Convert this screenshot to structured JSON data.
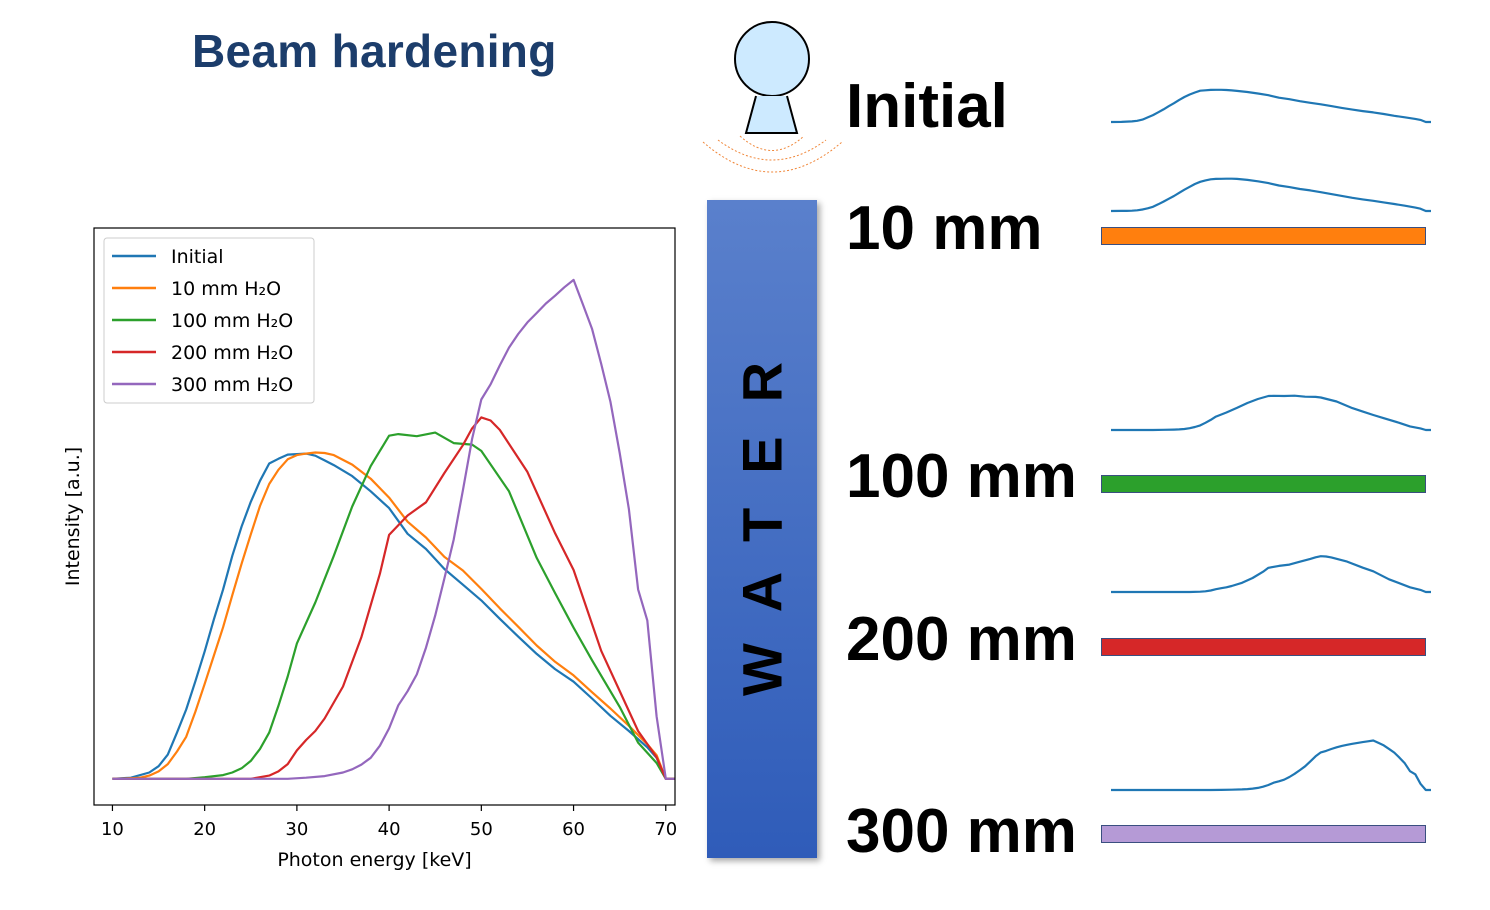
{
  "title": "Beam hardening",
  "water_label": "WATER",
  "colors": {
    "Initial": "#1f77b4",
    "10mm": "#ff7f0e",
    "100mm": "#2ca02c",
    "200mm": "#d62728",
    "300mm": "#9467bd",
    "bar_300mm_fill": "#b59ad6"
  },
  "right_panel": {
    "source_icon": "x-ray-source-icon",
    "labels": [
      "Initial",
      "10 mm",
      "100 mm",
      "200 mm",
      "300 mm"
    ]
  },
  "chart_data": {
    "type": "line",
    "xlabel": "Photon energy [keV]",
    "ylabel": "Intensity [a.u.]",
    "xlim": [
      8,
      71
    ],
    "ylim": [
      -0.05,
      1.05
    ],
    "xticks": [
      10,
      20,
      30,
      40,
      50,
      60,
      70
    ],
    "yticks_shown": false,
    "legend_position": "top-left",
    "series": [
      {
        "name": "Initial",
        "x": [
          10,
          12,
          14,
          15,
          16,
          17,
          18,
          19,
          20,
          21,
          22,
          23,
          24,
          25,
          26,
          27,
          28,
          29,
          30,
          31,
          32,
          33,
          34,
          36,
          38,
          40,
          42,
          44,
          46,
          48,
          50,
          52,
          54,
          56,
          58,
          60,
          62,
          64,
          66,
          68,
          69,
          70,
          71
        ],
        "y": [
          0,
          0.002,
          0.012,
          0.024,
          0.046,
          0.088,
          0.132,
          0.186,
          0.243,
          0.304,
          0.361,
          0.425,
          0.481,
          0.528,
          0.568,
          0.601,
          0.61,
          0.618,
          0.619,
          0.62,
          0.616,
          0.607,
          0.598,
          0.577,
          0.548,
          0.516,
          0.467,
          0.438,
          0.4,
          0.37,
          0.34,
          0.305,
          0.271,
          0.238,
          0.209,
          0.185,
          0.153,
          0.12,
          0.091,
          0.06,
          0.04,
          0,
          0
        ]
      },
      {
        "name": "10 mm H₂O",
        "x": [
          10,
          12,
          13,
          14,
          15,
          16,
          17,
          18,
          19,
          20,
          21,
          22,
          23,
          24,
          25,
          26,
          27,
          28,
          29,
          30,
          31,
          32,
          33,
          34,
          36,
          38,
          40,
          42,
          44,
          46,
          48,
          50,
          52,
          54,
          56,
          58,
          60,
          62,
          64,
          66,
          68,
          69,
          70,
          71
        ],
        "y": [
          0,
          0.001,
          0.002,
          0.006,
          0.014,
          0.028,
          0.052,
          0.08,
          0.128,
          0.181,
          0.235,
          0.289,
          0.35,
          0.41,
          0.466,
          0.52,
          0.562,
          0.589,
          0.609,
          0.617,
          0.62,
          0.622,
          0.621,
          0.617,
          0.599,
          0.572,
          0.536,
          0.49,
          0.46,
          0.423,
          0.397,
          0.362,
          0.325,
          0.29,
          0.254,
          0.223,
          0.197,
          0.165,
          0.134,
          0.101,
          0.066,
          0.045,
          0,
          0
        ]
      },
      {
        "name": "100 mm H₂O",
        "x": [
          10,
          18,
          20,
          22,
          23,
          24,
          25,
          26,
          27,
          28,
          29,
          30,
          32,
          34,
          36,
          38,
          40,
          41,
          43,
          45,
          47,
          49,
          50,
          53,
          56,
          58,
          60,
          62,
          65,
          67,
          69,
          70,
          71
        ],
        "y": [
          0,
          0,
          0.003,
          0.007,
          0.012,
          0.02,
          0.034,
          0.057,
          0.088,
          0.139,
          0.195,
          0.258,
          0.336,
          0.425,
          0.519,
          0.596,
          0.654,
          0.657,
          0.653,
          0.66,
          0.64,
          0.637,
          0.625,
          0.548,
          0.421,
          0.354,
          0.288,
          0.226,
          0.137,
          0.069,
          0.03,
          0,
          0
        ]
      },
      {
        "name": "200 mm H₂O",
        "x": [
          10,
          25,
          27,
          28,
          29,
          30,
          31,
          32,
          33,
          35,
          37,
          39,
          40,
          42,
          44,
          46,
          48,
          49,
          50,
          51,
          52,
          55,
          58,
          60,
          63,
          67,
          69,
          70,
          71
        ],
        "y": [
          0,
          0,
          0.006,
          0.014,
          0.028,
          0.054,
          0.074,
          0.091,
          0.115,
          0.176,
          0.27,
          0.391,
          0.465,
          0.502,
          0.527,
          0.583,
          0.636,
          0.668,
          0.689,
          0.683,
          0.665,
          0.585,
          0.468,
          0.398,
          0.244,
          0.091,
          0.041,
          0,
          0
        ]
      },
      {
        "name": "300 mm H₂O",
        "x": [
          10,
          29,
          31,
          33,
          35,
          36,
          37,
          38,
          39,
          40,
          41,
          42,
          43,
          44,
          45,
          46,
          47,
          48,
          49,
          50,
          51,
          52,
          53,
          54,
          55,
          56,
          57,
          58,
          59,
          60,
          61,
          62,
          63,
          64,
          65,
          66,
          67,
          68,
          69,
          70,
          71
        ],
        "y": [
          0,
          0,
          0.002,
          0.005,
          0.012,
          0.018,
          0.027,
          0.04,
          0.063,
          0.096,
          0.14,
          0.167,
          0.199,
          0.25,
          0.311,
          0.382,
          0.456,
          0.55,
          0.648,
          0.723,
          0.752,
          0.788,
          0.822,
          0.848,
          0.87,
          0.888,
          0.906,
          0.921,
          0.937,
          0.951,
          0.905,
          0.858,
          0.791,
          0.719,
          0.621,
          0.514,
          0.361,
          0.302,
          0.119,
          0,
          0
        ]
      }
    ]
  }
}
